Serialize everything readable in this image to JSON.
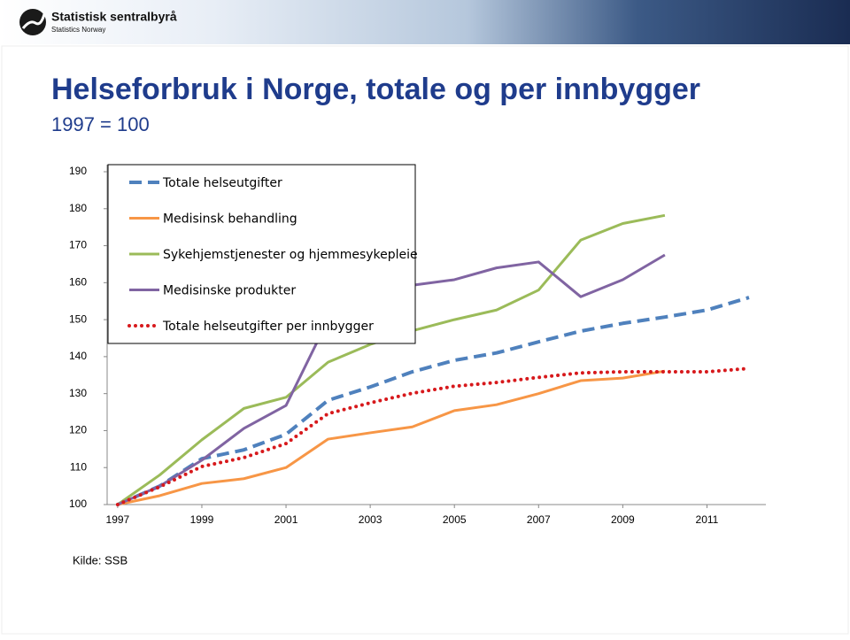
{
  "header": {
    "org": "Statistisk sentralbyrå",
    "org_en": "Statistics Norway"
  },
  "source": "Kilde: SSB",
  "chart_data": {
    "type": "line",
    "title": "Helseforbruk i Norge, totale og per innbygger",
    "subtitle": "1997 = 100",
    "x": [
      1997,
      1998,
      1999,
      2000,
      2001,
      2002,
      2003,
      2004,
      2005,
      2006,
      2007,
      2008,
      2009,
      2010,
      2011,
      2012
    ],
    "xlim": [
      1996.75,
      2012.4
    ],
    "xticks": [
      1997,
      1999,
      2001,
      2003,
      2005,
      2007,
      2009,
      2011
    ],
    "ylim": [
      100,
      190
    ],
    "yticks": [
      100,
      110,
      120,
      130,
      140,
      150,
      160,
      170,
      180,
      190
    ],
    "legend": "upper left",
    "series": [
      {
        "name": "Totale helseutgifter",
        "color": "#4f81bd",
        "style": "dashed",
        "values": [
          100,
          105,
          112.4,
          114.8,
          119,
          128.2,
          131.8,
          135.9,
          139,
          141,
          144,
          146.9,
          149,
          150.7,
          152.6,
          156
        ]
      },
      {
        "name": "Medisinsk behandling",
        "color": "#f79646",
        "style": "solid",
        "values": [
          100,
          102.4,
          105.7,
          107,
          110,
          117.7,
          119.4,
          121,
          125.4,
          127,
          130,
          133.5,
          134.2,
          136.1,
          null,
          null
        ]
      },
      {
        "name": "Sykehjemstjenester og hjemmesykepleie",
        "color": "#9bbb59",
        "style": "solid",
        "values": [
          100,
          108,
          117.5,
          126,
          129,
          138.5,
          143.3,
          147,
          150,
          152.6,
          158,
          171.5,
          176,
          178.2,
          null,
          null
        ]
      },
      {
        "name": "Medisinske produkter",
        "color": "#8064a2",
        "style": "solid",
        "values": [
          100,
          105,
          112,
          120.6,
          126.8,
          150,
          155,
          159.3,
          160.8,
          164,
          165.6,
          156.2,
          160.8,
          167.5,
          null,
          null
        ]
      },
      {
        "name": "Totale helseutgifter per innbygger",
        "color": "#d7191c",
        "style": "dotted",
        "values": [
          100,
          104.8,
          110.3,
          112.7,
          116.5,
          124.6,
          127.5,
          130.1,
          132,
          133,
          134.4,
          135.6,
          135.9,
          135.9,
          135.9,
          136.8
        ]
      }
    ]
  }
}
